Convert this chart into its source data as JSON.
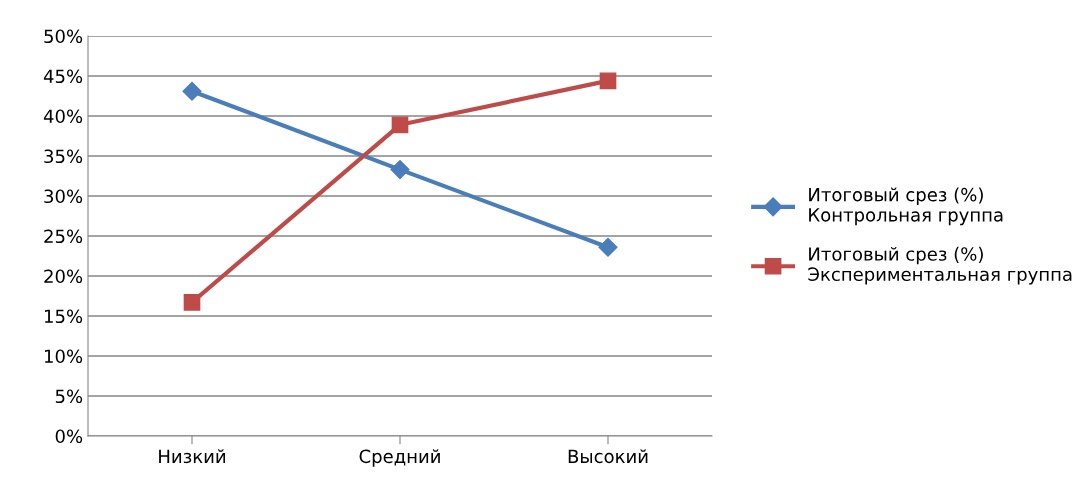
{
  "chart_data": {
    "type": "line",
    "categories": [
      "Низкий",
      "Средний",
      "Высокий"
    ],
    "series": [
      {
        "name": "Итоговый срез (%)\nКонтрольная группа",
        "color": "#4a7ebb",
        "marker": "diamond",
        "values": [
          43.1,
          33.3,
          23.6
        ]
      },
      {
        "name": "Итоговый срез (%)\nЭкспериментальная группа",
        "color": "#be4b48",
        "marker": "square",
        "values": [
          16.7,
          38.9,
          44.4
        ]
      }
    ],
    "ylim": [
      0,
      50
    ],
    "yticks": [
      {
        "value": 0,
        "label": "0%"
      },
      {
        "value": 5,
        "label": "5%"
      },
      {
        "value": 10,
        "label": "10%"
      },
      {
        "value": 15,
        "label": "15%"
      },
      {
        "value": 20,
        "label": "20%"
      },
      {
        "value": 25,
        "label": "25%"
      },
      {
        "value": 30,
        "label": "30%"
      },
      {
        "value": 35,
        "label": "35%"
      },
      {
        "value": 40,
        "label": "40%"
      },
      {
        "value": 45,
        "label": "45%"
      },
      {
        "value": 50,
        "label": "50%"
      }
    ],
    "grid": "y",
    "legend": "right",
    "line_style": "solid"
  }
}
